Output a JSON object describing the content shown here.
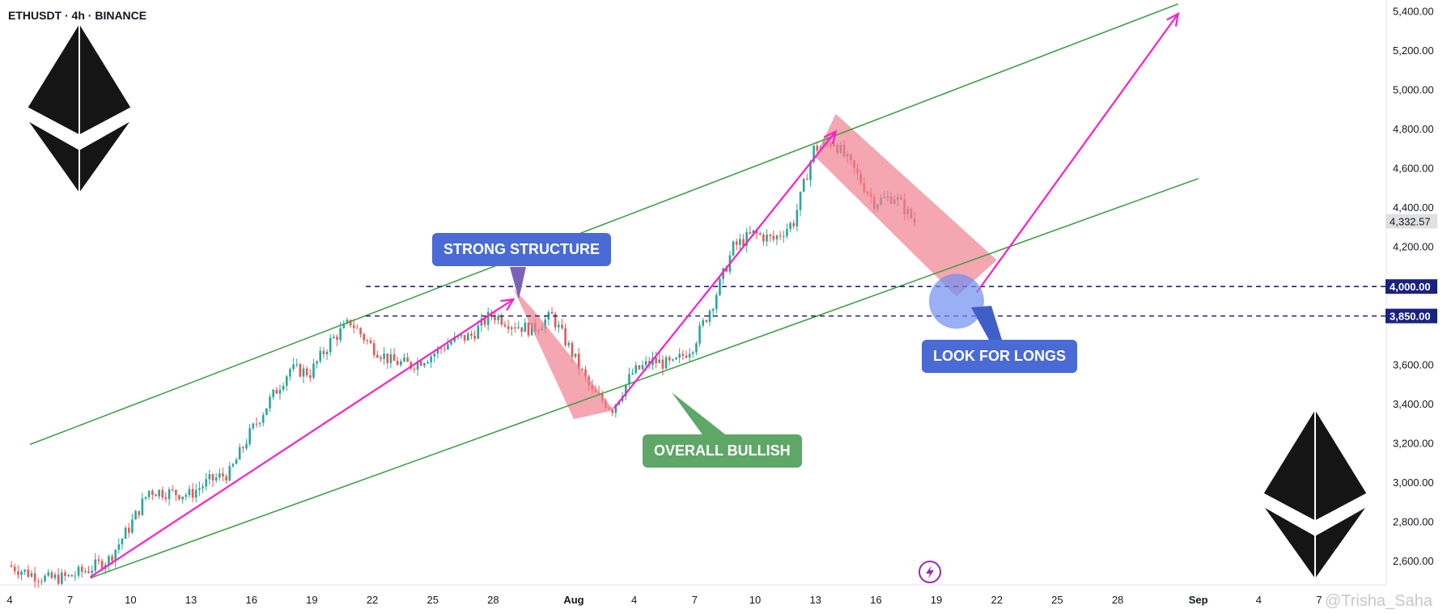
{
  "header": {
    "symbol": "ETHUSDT · 4h · BINANCE"
  },
  "chart_data": {
    "type": "candlestick",
    "symbol": "ETHUSDT",
    "interval": "4h",
    "exchange": "BINANCE",
    "ylim": [
      2480,
      5460
    ],
    "y_ticks": [
      "5,400.00",
      "5,200.00",
      "5,000.00",
      "4,800.00",
      "4,600.00",
      "4,400.00",
      "4,200.00",
      "3,600.00",
      "3,400.00",
      "3,200.00",
      "3,000.00",
      "2,800.00",
      "2,600.00"
    ],
    "y_tick_values": [
      5400,
      5200,
      5000,
      4800,
      4600,
      4400,
      4200,
      3600,
      3400,
      3200,
      3000,
      2800,
      2600
    ],
    "x_ticks": [
      "4",
      "7",
      "10",
      "13",
      "16",
      "19",
      "22",
      "25",
      "28",
      "Aug",
      "4",
      "7",
      "10",
      "13",
      "16",
      "19",
      "22",
      "25",
      "28",
      "Sep",
      "4",
      "7"
    ],
    "x_range_days": [
      "2025-07-04",
      "2025-09-07"
    ],
    "price_path": [
      [
        "2025-07-04",
        2580
      ],
      [
        "2025-07-05",
        2540
      ],
      [
        "2025-07-06",
        2510
      ],
      [
        "2025-07-07",
        2520
      ],
      [
        "2025-07-08",
        2560
      ],
      [
        "2025-07-09",
        2610
      ],
      [
        "2025-07-10",
        2770
      ],
      [
        "2025-07-11",
        2960
      ],
      [
        "2025-07-12",
        2950
      ],
      [
        "2025-07-13",
        2940
      ],
      [
        "2025-07-14",
        3010
      ],
      [
        "2025-07-15",
        3050
      ],
      [
        "2025-07-16",
        3250
      ],
      [
        "2025-07-17",
        3420
      ],
      [
        "2025-07-18",
        3580
      ],
      [
        "2025-07-19",
        3560
      ],
      [
        "2025-07-20",
        3720
      ],
      [
        "2025-07-21",
        3820
      ],
      [
        "2025-07-22",
        3700
      ],
      [
        "2025-07-23",
        3620
      ],
      [
        "2025-07-24",
        3600
      ],
      [
        "2025-07-25",
        3650
      ],
      [
        "2025-07-26",
        3720
      ],
      [
        "2025-07-27",
        3750
      ],
      [
        "2025-07-28",
        3860
      ],
      [
        "2025-07-29",
        3810
      ],
      [
        "2025-07-30",
        3780
      ],
      [
        "2025-07-31",
        3850
      ],
      [
        "2025-08-01",
        3660
      ],
      [
        "2025-08-02",
        3460
      ],
      [
        "2025-08-03",
        3380
      ],
      [
        "2025-08-04",
        3560
      ],
      [
        "2025-08-05",
        3620
      ],
      [
        "2025-08-06",
        3600
      ],
      [
        "2025-08-07",
        3700
      ],
      [
        "2025-08-08",
        3920
      ],
      [
        "2025-08-09",
        4200
      ],
      [
        "2025-08-10",
        4270
      ],
      [
        "2025-08-11",
        4240
      ],
      [
        "2025-08-12",
        4330
      ],
      [
        "2025-08-13",
        4700
      ],
      [
        "2025-08-14",
        4740
      ],
      [
        "2025-08-15",
        4590
      ],
      [
        "2025-08-16",
        4430
      ],
      [
        "2025-08-17",
        4460
      ],
      [
        "2025-08-18",
        4330
      ]
    ],
    "last_price": "4,332.57",
    "levels": [
      {
        "label": "4,000.00",
        "value": 4000
      },
      {
        "label": "3,850.00",
        "value": 3850
      }
    ],
    "channel_lines": [
      {
        "name": "upper",
        "start": [
          "2025-07-05",
          3195
        ],
        "end": [
          "2025-08-31",
          5440
        ]
      },
      {
        "name": "lower",
        "start": [
          "2025-07-08",
          2515
        ],
        "end": [
          "2025-09-01",
          4550
        ]
      }
    ],
    "impulse_arrows": [
      {
        "start": [
          "2025-07-08",
          2520
        ],
        "end": [
          "2025-07-29",
          3935
        ]
      },
      {
        "start": [
          "2025-08-03",
          3380
        ],
        "end": [
          "2025-08-14",
          4790
        ]
      },
      {
        "start": [
          "2025-08-21",
          3970
        ],
        "end": [
          "2025-08-31",
          5390
        ]
      }
    ],
    "correction_boxes": [
      {
        "top_left": [
          "2025-07-29",
          3990
        ],
        "top_right": [
          "2025-07-30",
          3880
        ],
        "bottom_right": [
          "2025-08-03",
          3370
        ],
        "bottom_left": [
          "2025-08-01",
          3325
        ]
      },
      {
        "top_left": [
          "2025-08-13",
          4660
        ],
        "top_right": [
          "2025-08-14",
          4880
        ],
        "bottom_right": [
          "2025-08-22",
          4135
        ],
        "bottom_left": [
          "2025-08-20",
          3950
        ]
      }
    ],
    "target_zone": {
      "center": [
        "2025-08-20",
        3925
      ],
      "label_ref": "LOOK FOR LONGS"
    },
    "annotations": [
      "STRONG STRUCTURE",
      "OVERALL BULLISH",
      "LOOK FOR LONGS"
    ]
  },
  "callouts": {
    "strong": "STRONG STRUCTURE",
    "bullish": "OVERALL BULLISH",
    "longs": "LOOK FOR LONGS"
  },
  "labels": {
    "last_price": "4,332.57",
    "level_4000": "4,000.00",
    "level_3850": "3,850.00"
  },
  "colors": {
    "up": "#26a69a",
    "down": "#ef5350",
    "channel": "#43a047",
    "arrow": "#ff1fc7",
    "box": "#f08090",
    "level": "#1a237e",
    "callout_blue": "#4a6bd6",
    "callout_green": "#5ea766",
    "logo": "#151515"
  },
  "icons": {
    "eth_logo": "ethereum-logo",
    "bolt": "lightning-icon"
  },
  "watermark": "@Trisha_Saha"
}
